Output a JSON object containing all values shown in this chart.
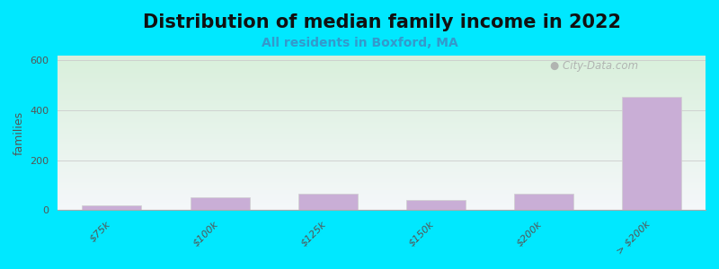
{
  "title": "Distribution of median family income in 2022",
  "subtitle": "All residents in Boxford, MA",
  "categories": [
    "$75k",
    "$100k",
    "$125k",
    "$150k",
    "$200k",
    "> $200k"
  ],
  "values": [
    20,
    50,
    65,
    40,
    65,
    455
  ],
  "bar_color": "#c9aed6",
  "bar_edge_color": "#d0d0d0",
  "ylabel": "families",
  "ylim": [
    0,
    620
  ],
  "yticks": [
    0,
    200,
    400,
    600
  ],
  "background_color": "#00e8ff",
  "plot_bg_top": "#f5f5f8",
  "plot_bg_bottom": "#d8eedd",
  "watermark": " City-Data.com",
  "title_fontsize": 15,
  "subtitle_fontsize": 10,
  "tick_fontsize": 8,
  "ylabel_fontsize": 9
}
